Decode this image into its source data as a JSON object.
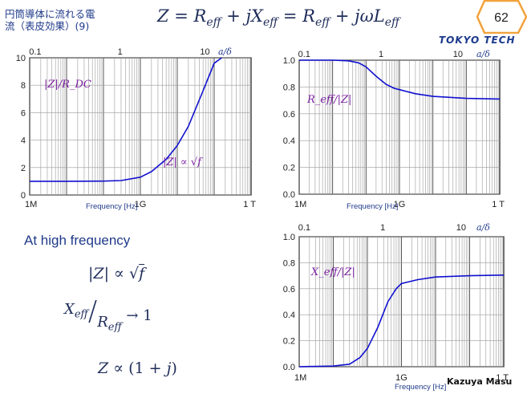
{
  "slide": {
    "title_line1": "円筒導体に流れる電",
    "title_line2": "流（表皮効果）(9)",
    "equation": "Z = R_eff + jX_eff = R_eff + jωL_eff",
    "page_number": "62",
    "logo": "TOKYO TECH",
    "author": "Kazuya Masu"
  },
  "notes": {
    "heading": "At high frequency",
    "eq1": "|Z| ∝ √f",
    "eq2": "X_eff / R_eff → 1",
    "eq3": "Z ∝ (1 + j)"
  },
  "colors": {
    "curve": "#1010d0",
    "label": "#7a1fa0",
    "text": "#1f3a8a"
  },
  "chart_data": [
    {
      "type": "line",
      "id": "plot-z",
      "title": "",
      "xscale": "log",
      "xlim": [
        1000000.0,
        1000000000000.0
      ],
      "xticks": [
        {
          "v": 1000000.0,
          "label": "1M"
        },
        {
          "v": 1000000000.0,
          "label": "1G"
        },
        {
          "v": 1000000000000.0,
          "label": "1 T"
        }
      ],
      "xlabel": "Frequency [Hz]",
      "top_axis": {
        "name": "a/δ",
        "ticks": [
          {
            "v": 0.1,
            "label": "0.1"
          },
          {
            "v": 1,
            "label": "1"
          },
          {
            "v": 10,
            "label": "10"
          }
        ]
      },
      "ylim": [
        0,
        10
      ],
      "yticks": [
        0,
        2,
        4,
        6,
        8,
        10
      ],
      "curve_label": "|Z|/R_DC",
      "annotation": "|Z| ∝ √f",
      "series": [
        {
          "x": [
            1000000.0,
            10000000.0,
            100000000.0,
            300000000.0,
            1000000000.0,
            2000000000.0,
            5000000000.0,
            10000000000.0,
            20000000000.0,
            50000000000.0,
            100000000000.0,
            160000000000.0
          ],
          "y": [
            1,
            1,
            1.01,
            1.05,
            1.3,
            1.7,
            2.6,
            3.6,
            5,
            7.6,
            9.6,
            10
          ]
        }
      ]
    },
    {
      "type": "line",
      "id": "plot-reff",
      "title": "",
      "xscale": "log",
      "xlim": [
        1000000.0,
        1000000000000.0
      ],
      "xticks": [
        {
          "v": 1000000.0,
          "label": "1M"
        },
        {
          "v": 1000000000.0,
          "label": "1G"
        },
        {
          "v": 1000000000000.0,
          "label": "1 T"
        }
      ],
      "xlabel": "Frequency [Hz]",
      "top_axis": {
        "name": "a/δ",
        "ticks": [
          {
            "v": 0.1,
            "label": "0.1"
          },
          {
            "v": 1,
            "label": "1"
          },
          {
            "v": 10,
            "label": "10"
          }
        ]
      },
      "ylim": [
        0,
        1
      ],
      "yticks": [
        0,
        0.2,
        0.4,
        0.6,
        0.8,
        1.0
      ],
      "curve_label": "R_eff/|Z|",
      "series": [
        {
          "x": [
            1000000.0,
            10000000.0,
            30000000.0,
            60000000.0,
            100000000.0,
            200000000.0,
            400000000.0,
            700000000.0,
            1000000000.0,
            3000000000.0,
            10000000000.0,
            100000000000.0,
            1000000000000.0
          ],
          "y": [
            1,
            1,
            0.995,
            0.98,
            0.95,
            0.88,
            0.82,
            0.79,
            0.78,
            0.75,
            0.73,
            0.715,
            0.71
          ]
        }
      ]
    },
    {
      "type": "line",
      "id": "plot-xeff",
      "title": "",
      "xscale": "log",
      "xlim": [
        1000000.0,
        1000000000000.0
      ],
      "xticks": [
        {
          "v": 1000000.0,
          "label": "1M"
        },
        {
          "v": 1000000000.0,
          "label": "1G"
        },
        {
          "v": 1000000000000.0,
          "label": "1 T"
        }
      ],
      "xlabel": "Frequency [Hz]",
      "top_axis": {
        "name": "a/δ",
        "ticks": [
          {
            "v": 0.1,
            "label": "0.1"
          },
          {
            "v": 1,
            "label": "1"
          },
          {
            "v": 10,
            "label": "10"
          }
        ]
      },
      "ylim": [
        0,
        1
      ],
      "yticks": [
        0,
        0.2,
        0.4,
        0.6,
        0.8,
        1.0
      ],
      "curve_label": "X_eff/|Z|",
      "series": [
        {
          "x": [
            1000000.0,
            10000000.0,
            30000000.0,
            60000000.0,
            100000000.0,
            200000000.0,
            400000000.0,
            700000000.0,
            1000000000.0,
            3000000000.0,
            10000000000.0,
            100000000000.0,
            1000000000000.0
          ],
          "y": [
            0,
            0.005,
            0.02,
            0.07,
            0.14,
            0.3,
            0.5,
            0.6,
            0.64,
            0.67,
            0.69,
            0.7,
            0.705
          ]
        }
      ]
    }
  ]
}
